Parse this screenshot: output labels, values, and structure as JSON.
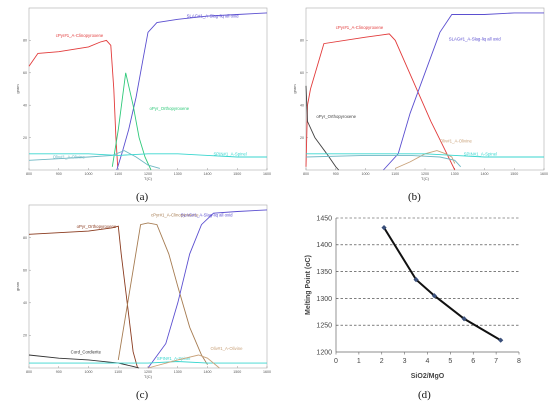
{
  "chart_data": [
    {
      "panel_label": "(a)",
      "type": "line",
      "xlabel": "T(C)",
      "ylabel": "gram",
      "xlim": [
        800,
        1600
      ],
      "ylim": [
        0,
        100
      ],
      "x_ticks": [
        "800",
        "900",
        "1000",
        "1100",
        "1200",
        "1300",
        "1400",
        "1500",
        "1600"
      ],
      "y_ticks": [
        "20",
        "40",
        "60",
        "80"
      ],
      "series": [
        {
          "name": "cPyr#1_A-Clinopyroxene",
          "color": "#e23b3b",
          "label_at": [
            890,
            82
          ],
          "points": [
            [
              800,
              64
            ],
            [
              830,
              72
            ],
            [
              900,
              73
            ],
            [
              1000,
              76
            ],
            [
              1040,
              79
            ],
            [
              1060,
              80
            ],
            [
              1075,
              77
            ],
            [
              1085,
              50
            ],
            [
              1092,
              20
            ],
            [
              1098,
              2
            ]
          ]
        },
        {
          "name": "SLAG#1_A-Slag-liq all oxid",
          "color": "#5b4fd0",
          "label_at": [
            1330,
            94
          ],
          "points": [
            [
              1095,
              0
            ],
            [
              1115,
              12
            ],
            [
              1135,
              25
            ],
            [
              1160,
              45
            ],
            [
              1185,
              70
            ],
            [
              1200,
              85
            ],
            [
              1230,
              91
            ],
            [
              1300,
              93
            ],
            [
              1400,
              95
            ],
            [
              1500,
              96
            ],
            [
              1600,
              97
            ]
          ]
        },
        {
          "name": "oPyr_Orthopyroxene",
          "color": "#2fc97a",
          "label_at": [
            1205,
            37
          ],
          "points": [
            [
              1080,
              2
            ],
            [
              1100,
              25
            ],
            [
              1125,
              60
            ],
            [
              1150,
              40
            ],
            [
              1170,
              20
            ],
            [
              1190,
              8
            ],
            [
              1210,
              0
            ]
          ]
        },
        {
          "name": "Oliv#1_A-Olivine",
          "color": "#6fb8c4",
          "label_at": [
            880,
            7
          ],
          "points": [
            [
              800,
              6
            ],
            [
              900,
              7
            ],
            [
              1000,
              8
            ],
            [
              1080,
              9
            ],
            [
              1120,
              12
            ],
            [
              1160,
              8
            ],
            [
              1200,
              3
            ],
            [
              1240,
              1
            ]
          ]
        },
        {
          "name": "SPIN#1_A-Spinel",
          "color": "#39d6cf",
          "label_at": [
            1420,
            9
          ],
          "points": [
            [
              800,
              10
            ],
            [
              1000,
              10
            ],
            [
              1100,
              9
            ],
            [
              1200,
              10
            ],
            [
              1300,
              10
            ],
            [
              1400,
              9
            ],
            [
              1500,
              8
            ],
            [
              1600,
              8
            ]
          ]
        }
      ]
    },
    {
      "panel_label": "(b)",
      "type": "line",
      "xlabel": "T(C)",
      "ylabel": "gram",
      "xlim": [
        800,
        1600
      ],
      "ylim": [
        0,
        100
      ],
      "x_ticks": [
        "800",
        "900",
        "1000",
        "1100",
        "1200",
        "1300",
        "1400",
        "1500",
        "1600"
      ],
      "y_ticks": [
        "20",
        "40",
        "60",
        "80"
      ],
      "series": [
        {
          "name": "cPyr#1_A-Clinopyroxene",
          "color": "#e23b3b",
          "label_at": [
            900,
            87
          ],
          "points": [
            [
              800,
              2
            ],
            [
              805,
              40
            ],
            [
              815,
              50
            ],
            [
              860,
              78
            ],
            [
              1000,
              82
            ],
            [
              1080,
              84
            ],
            [
              1100,
              80
            ],
            [
              1160,
              55
            ],
            [
              1220,
              30
            ],
            [
              1260,
              15
            ],
            [
              1300,
              0
            ]
          ]
        },
        {
          "name": "SLAG#1_A-Slag-liq all oxid",
          "color": "#5b4fd0",
          "label_at": [
            1280,
            80
          ],
          "points": [
            [
              1060,
              0
            ],
            [
              1110,
              10
            ],
            [
              1150,
              35
            ],
            [
              1200,
              60
            ],
            [
              1250,
              85
            ],
            [
              1290,
              96
            ],
            [
              1400,
              96
            ],
            [
              1500,
              97
            ],
            [
              1600,
              97
            ]
          ]
        },
        {
          "name": "oPyr_Orthopyroxene",
          "color": "#444444",
          "label_at": [
            835,
            32
          ],
          "points": [
            [
              800,
              52
            ],
            [
              805,
              30
            ],
            [
              830,
              20
            ],
            [
              870,
              10
            ],
            [
              900,
              2
            ],
            [
              910,
              0
            ]
          ]
        },
        {
          "name": "Oliv#1_A-Olivine",
          "color": "#c9a27a",
          "label_at": [
            1250,
            17
          ],
          "points": [
            [
              1100,
              1
            ],
            [
              1150,
              5
            ],
            [
              1200,
              10
            ],
            [
              1240,
              12
            ],
            [
              1270,
              10
            ],
            [
              1290,
              8
            ],
            [
              1300,
              4
            ]
          ]
        },
        {
          "name": "SPIN#1_A-Spinel",
          "color": "#39d6cf",
          "label_at": [
            1330,
            9
          ],
          "points": [
            [
              800,
              10
            ],
            [
              900,
              10
            ],
            [
              1000,
              10
            ],
            [
              1100,
              10
            ],
            [
              1200,
              10
            ],
            [
              1300,
              9
            ],
            [
              1400,
              8
            ],
            [
              1600,
              8
            ]
          ]
        },
        {
          "name": "",
          "color": "#6fb8c4",
          "points": [
            [
              800,
              8
            ],
            [
              1000,
              9
            ],
            [
              1150,
              9
            ],
            [
              1250,
              8
            ],
            [
              1300,
              6
            ],
            [
              1320,
              2
            ]
          ]
        }
      ]
    },
    {
      "panel_label": "(c)",
      "type": "line",
      "xlabel": "T(C)",
      "ylabel": "gram",
      "xlim": [
        800,
        1600
      ],
      "ylim": [
        0,
        100
      ],
      "x_ticks": [
        "800",
        "900",
        "1000",
        "1100",
        "1200",
        "1300",
        "1400",
        "1500",
        "1600"
      ],
      "y_ticks": [
        "20",
        "40",
        "60",
        "80"
      ],
      "series": [
        {
          "name": "oPyr_Orthopyroxene",
          "color": "#8a3b1f",
          "label_at": [
            960,
            86
          ],
          "points": [
            [
              800,
              82
            ],
            [
              900,
              83
            ],
            [
              1000,
              84
            ],
            [
              1080,
              86
            ],
            [
              1100,
              87
            ],
            [
              1110,
              70
            ],
            [
              1130,
              40
            ],
            [
              1150,
              10
            ],
            [
              1165,
              0
            ]
          ]
        },
        {
          "name": "cPyr#1_A-Clinopyroxene",
          "color": "#a67c52",
          "label_at": [
            1210,
            93
          ],
          "points": [
            [
              1100,
              5
            ],
            [
              1150,
              60
            ],
            [
              1175,
              88
            ],
            [
              1200,
              89
            ],
            [
              1230,
              88
            ],
            [
              1270,
              70
            ],
            [
              1300,
              50
            ],
            [
              1340,
              25
            ],
            [
              1380,
              8
            ],
            [
              1400,
              2
            ]
          ]
        },
        {
          "name": "SLAG#1_A-Slag-liq all oxid",
          "color": "#5b4fd0",
          "label_at": [
            1310,
            93
          ],
          "points": [
            [
              1200,
              0
            ],
            [
              1260,
              15
            ],
            [
              1300,
              40
            ],
            [
              1340,
              70
            ],
            [
              1380,
              88
            ],
            [
              1420,
              95
            ],
            [
              1500,
              96
            ],
            [
              1600,
              97
            ]
          ]
        },
        {
          "name": "Cord_Cordierite",
          "color": "#333333",
          "label_at": [
            940,
            9
          ],
          "points": [
            [
              800,
              8
            ],
            [
              900,
              6
            ],
            [
              1000,
              5
            ],
            [
              1100,
              3
            ],
            [
              1150,
              1
            ],
            [
              1170,
              0
            ]
          ]
        },
        {
          "name": "SPIN#1_A-Spinel",
          "color": "#39d6cf",
          "label_at": [
            1230,
            5
          ],
          "points": [
            [
              800,
              3
            ],
            [
              1000,
              3
            ],
            [
              1100,
              3
            ],
            [
              1200,
              3
            ],
            [
              1300,
              4
            ],
            [
              1400,
              3
            ],
            [
              1600,
              3
            ]
          ]
        },
        {
          "name": "Oliv#1_A-Olivine",
          "color": "#c9a27a",
          "label_at": [
            1410,
            11
          ],
          "points": [
            [
              1200,
              0
            ],
            [
              1300,
              5
            ],
            [
              1370,
              8
            ],
            [
              1400,
              6
            ],
            [
              1440,
              0
            ]
          ]
        }
      ]
    },
    {
      "panel_label": "(d)",
      "type": "line",
      "xlabel": "SiO2/MgO",
      "ylabel": "Melting Point (oC)",
      "xlim": [
        0,
        8
      ],
      "ylim": [
        1200,
        1450
      ],
      "x_ticks": [
        "0",
        "1",
        "2",
        "3",
        "4",
        "5",
        "6",
        "7",
        "8"
      ],
      "y_ticks": [
        "1200",
        "1250",
        "1300",
        "1350",
        "1400",
        "1450"
      ],
      "grid": "horizontal dashed",
      "series": [
        {
          "name": "",
          "color": "#111111",
          "points": [
            [
              2.1,
              1432
            ],
            [
              3.5,
              1335
            ],
            [
              4.3,
              1305
            ],
            [
              5.6,
              1262
            ],
            [
              7.2,
              1222
            ]
          ]
        }
      ]
    }
  ],
  "colors": {
    "axis": "#999999",
    "tick_text": "#555555",
    "grid": "#333333"
  }
}
